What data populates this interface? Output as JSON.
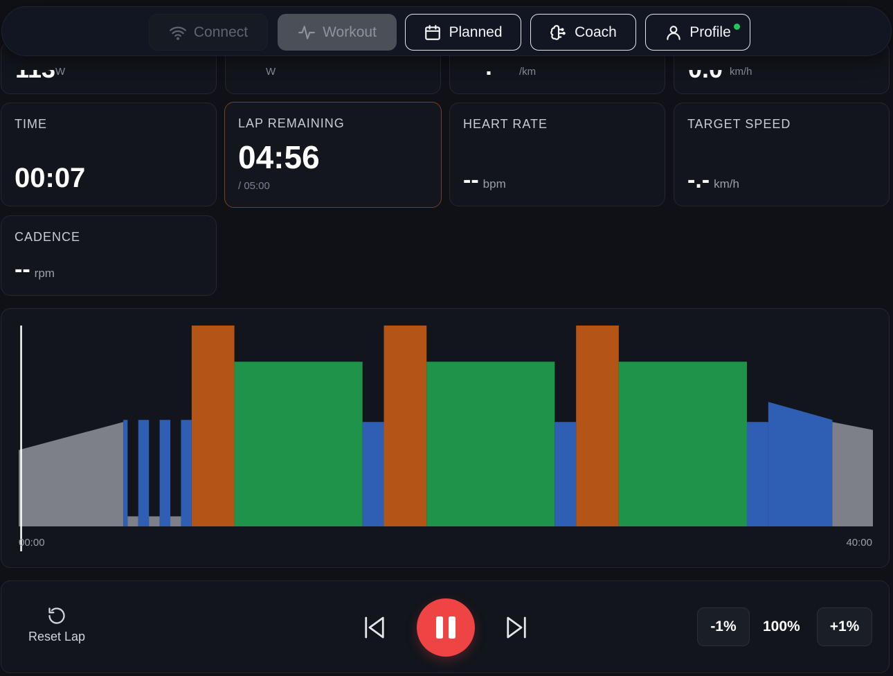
{
  "nav": {
    "connect": "Connect",
    "workout": "Workout",
    "planned": "Planned",
    "coach": "Coach",
    "profile": "Profile"
  },
  "top_row": [
    {
      "value": "113",
      "unit": "W"
    },
    {
      "value": "",
      "unit": "W"
    },
    {
      "value": ":",
      "unit": "/km"
    },
    {
      "value": "0.0",
      "unit": "km/h"
    }
  ],
  "metrics": {
    "time": {
      "label": "TIME",
      "value": "00:07"
    },
    "lap_remaining": {
      "label": "LAP REMAINING",
      "value": "04:56",
      "sub": "/ 05:00"
    },
    "heart_rate": {
      "label": "HEART RATE",
      "value": "--",
      "unit": "bpm"
    },
    "target_speed": {
      "label": "TARGET SPEED",
      "value": "-.-",
      "unit": "km/h"
    },
    "cadence": {
      "label": "CADENCE",
      "value": "--",
      "unit": "rpm"
    }
  },
  "chart_data": {
    "type": "bar",
    "x_start_label": "00:00",
    "x_end_label": "40:00",
    "total_minutes": 40,
    "max_intensity": 1.0,
    "current_minute": 0.05,
    "colors": {
      "warmup": "#7d8088",
      "recovery": "#2f5fb4",
      "threshold": "#1f934a",
      "vo2": "#b45416"
    },
    "segments": [
      {
        "start": 0,
        "end": 4.9,
        "from": 0.38,
        "to": 0.52,
        "zone": "warmup"
      },
      {
        "start": 4.9,
        "end": 5.1,
        "from": 0.53,
        "to": 0.53,
        "zone": "recovery"
      },
      {
        "start": 5.1,
        "end": 5.6,
        "from": 0.05,
        "to": 0.05,
        "zone": "warmup"
      },
      {
        "start": 5.6,
        "end": 6.1,
        "from": 0.53,
        "to": 0.53,
        "zone": "recovery"
      },
      {
        "start": 6.1,
        "end": 6.6,
        "from": 0.05,
        "to": 0.05,
        "zone": "warmup"
      },
      {
        "start": 6.6,
        "end": 7.1,
        "from": 0.53,
        "to": 0.53,
        "zone": "recovery"
      },
      {
        "start": 7.1,
        "end": 7.6,
        "from": 0.05,
        "to": 0.05,
        "zone": "warmup"
      },
      {
        "start": 7.6,
        "end": 8.1,
        "from": 0.53,
        "to": 0.53,
        "zone": "recovery"
      },
      {
        "start": 8.1,
        "end": 10.1,
        "from": 1.0,
        "to": 1.0,
        "zone": "vo2"
      },
      {
        "start": 10.1,
        "end": 16.1,
        "from": 0.82,
        "to": 0.82,
        "zone": "threshold"
      },
      {
        "start": 16.1,
        "end": 17.1,
        "from": 0.52,
        "to": 0.52,
        "zone": "recovery"
      },
      {
        "start": 17.1,
        "end": 19.1,
        "from": 1.0,
        "to": 1.0,
        "zone": "vo2"
      },
      {
        "start": 19.1,
        "end": 25.1,
        "from": 0.82,
        "to": 0.82,
        "zone": "threshold"
      },
      {
        "start": 25.1,
        "end": 26.1,
        "from": 0.52,
        "to": 0.52,
        "zone": "recovery"
      },
      {
        "start": 26.1,
        "end": 28.1,
        "from": 1.0,
        "to": 1.0,
        "zone": "vo2"
      },
      {
        "start": 28.1,
        "end": 34.1,
        "from": 0.82,
        "to": 0.82,
        "zone": "threshold"
      },
      {
        "start": 34.1,
        "end": 35.1,
        "from": 0.52,
        "to": 0.52,
        "zone": "recovery"
      },
      {
        "start": 35.1,
        "end": 38.1,
        "from": 0.62,
        "to": 0.53,
        "zone": "recovery"
      },
      {
        "start": 38.1,
        "end": 40,
        "from": 0.52,
        "to": 0.48,
        "zone": "warmup"
      }
    ]
  },
  "controls": {
    "reset_lap": "Reset Lap",
    "minus": "-1%",
    "intensity": "100%",
    "plus": "+1%"
  }
}
